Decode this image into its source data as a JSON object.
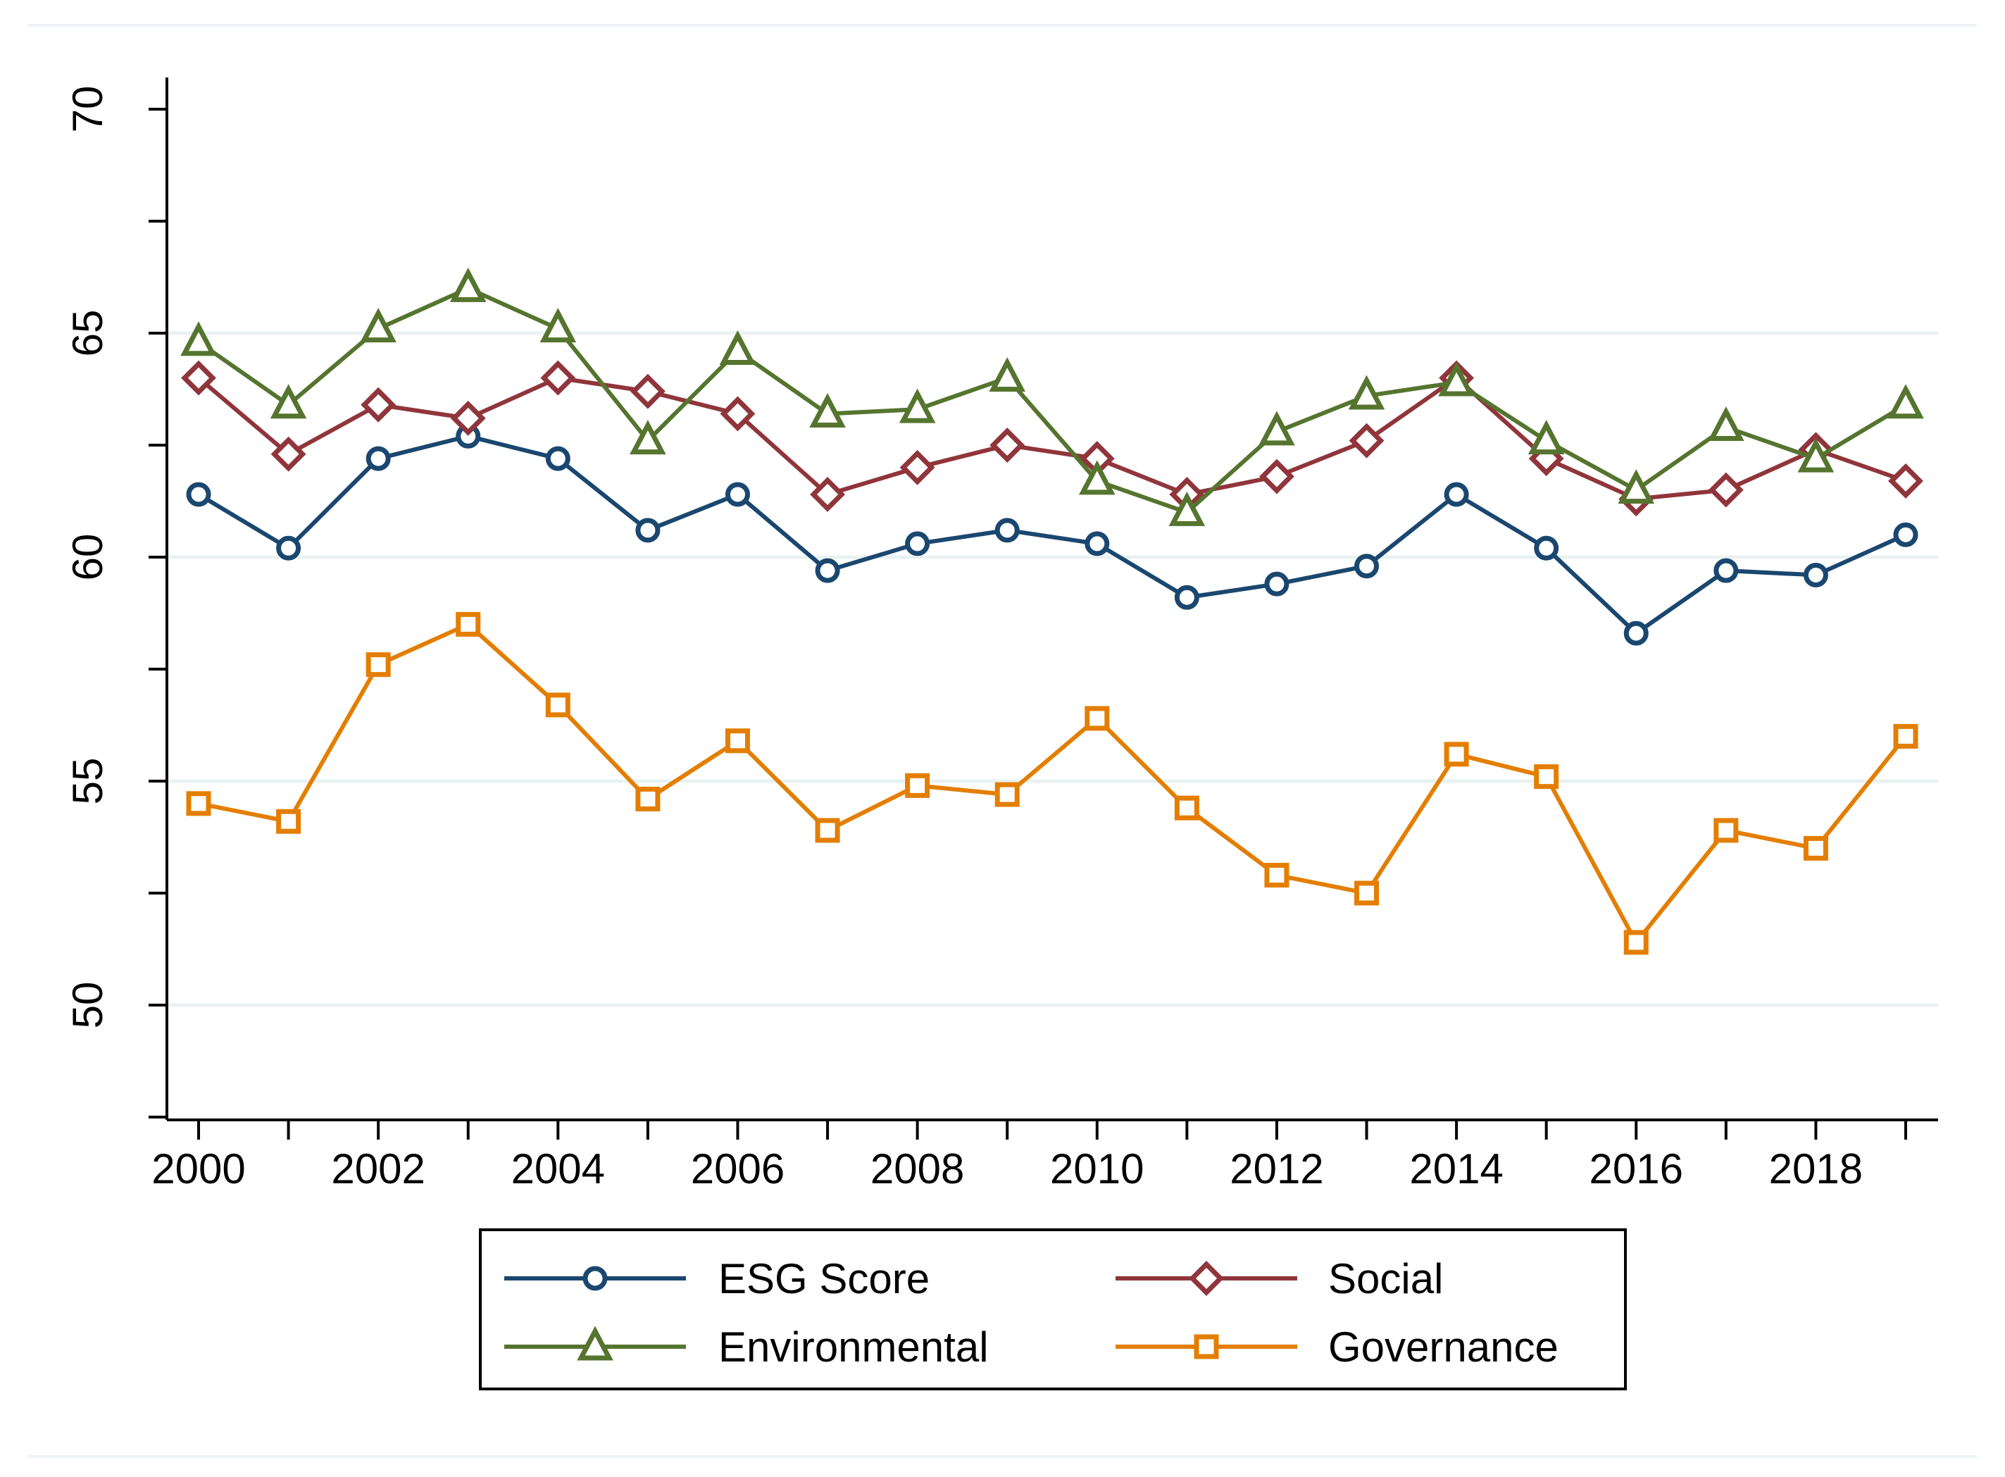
{
  "chart_data": {
    "type": "line",
    "title": "",
    "xlabel": "",
    "ylabel": "",
    "x": [
      2000,
      2001,
      2002,
      2003,
      2004,
      2005,
      2006,
      2007,
      2008,
      2009,
      2010,
      2011,
      2012,
      2013,
      2014,
      2015,
      2016,
      2017,
      2018,
      2019
    ],
    "xlim": [
      2000,
      2019
    ],
    "ylim": [
      47,
      70
    ],
    "x_ticks_major": [
      2000,
      2002,
      2004,
      2006,
      2008,
      2010,
      2012,
      2014,
      2016,
      2018
    ],
    "x_tick_labels": [
      "2000",
      "2002",
      "2004",
      "2006",
      "2008",
      "2010",
      "2012",
      "2014",
      "2016",
      "2018"
    ],
    "y_ticks_major": [
      50,
      55,
      60,
      65,
      70
    ],
    "y_tick_labels": [
      "50",
      "55",
      "60",
      "65",
      "70"
    ],
    "y_ticks_minor": [
      47.5,
      52.5,
      57.5,
      62.5,
      67.5
    ],
    "gridlines": [
      50,
      55,
      60,
      65
    ],
    "legend_position": "bottom",
    "series": [
      {
        "name": "ESG Score",
        "color": "#1a476f",
        "marker": "circle",
        "values": [
          61.4,
          60.2,
          62.2,
          62.7,
          62.2,
          60.6,
          61.4,
          59.7,
          60.3,
          60.6,
          60.3,
          59.1,
          59.4,
          59.8,
          61.4,
          60.2,
          58.3,
          59.7,
          59.6,
          60.5
        ]
      },
      {
        "name": "Social",
        "color": "#90353b",
        "marker": "diamond",
        "values": [
          64.0,
          62.3,
          63.4,
          63.1,
          64.0,
          63.7,
          63.2,
          61.4,
          62.0,
          62.5,
          62.2,
          61.4,
          61.8,
          62.6,
          64.0,
          62.2,
          61.3,
          61.5,
          62.4,
          61.7
        ]
      },
      {
        "name": "Environmental",
        "color": "#55752f",
        "marker": "triangle",
        "values": [
          64.8,
          63.4,
          65.1,
          66.0,
          65.1,
          62.6,
          64.6,
          63.2,
          63.3,
          64.0,
          61.7,
          61.0,
          62.8,
          63.6,
          63.9,
          62.6,
          61.5,
          62.9,
          62.2,
          63.4
        ]
      },
      {
        "name": "Governance",
        "color": "#e37e00",
        "marker": "square",
        "values": [
          54.5,
          54.1,
          57.6,
          58.5,
          56.7,
          54.6,
          55.9,
          53.9,
          54.9,
          54.7,
          56.4,
          54.4,
          52.9,
          52.5,
          55.6,
          55.1,
          51.4,
          53.9,
          53.5,
          56.0
        ]
      }
    ]
  }
}
